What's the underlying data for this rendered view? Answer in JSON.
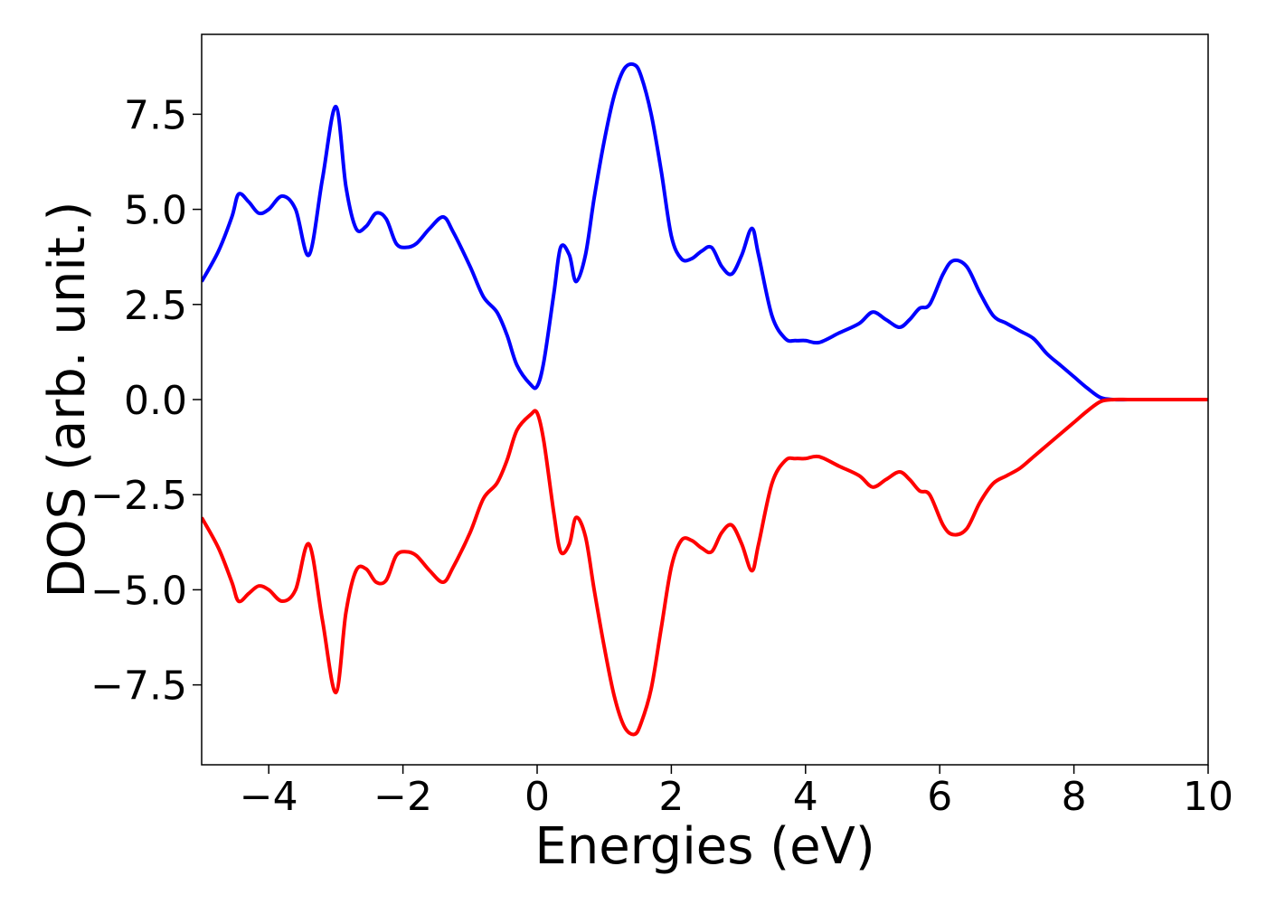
{
  "chart_data": {
    "type": "line",
    "title": "",
    "xlabel": "Energies (eV)",
    "ylabel": "DOS (arb. unit.)",
    "xlim": [
      -5,
      10
    ],
    "ylim": [
      -9.6,
      9.6
    ],
    "xticks": [
      -4,
      -2,
      0,
      2,
      4,
      6,
      8,
      10
    ],
    "xtick_labels": [
      "−4",
      "−2",
      "0",
      "2",
      "4",
      "6",
      "8",
      "10"
    ],
    "yticks": [
      -7.5,
      -5.0,
      -2.5,
      0.0,
      2.5,
      5.0,
      7.5
    ],
    "ytick_labels": [
      "−7.5",
      "−5.0",
      "−2.5",
      "0.0",
      "2.5",
      "5.0",
      "7.5"
    ],
    "grid": false,
    "series": [
      {
        "color": "#0000ff",
        "x": [
          -5.0,
          -4.75,
          -4.55,
          -4.45,
          -4.3,
          -4.15,
          -4.0,
          -3.8,
          -3.6,
          -3.4,
          -3.2,
          -3.0,
          -2.85,
          -2.7,
          -2.55,
          -2.4,
          -2.25,
          -2.1,
          -1.95,
          -1.8,
          -1.6,
          -1.4,
          -1.25,
          -1.0,
          -0.8,
          -0.6,
          -0.45,
          -0.3,
          -0.1,
          0.0,
          0.1,
          0.25,
          0.35,
          0.48,
          0.58,
          0.72,
          0.85,
          1.0,
          1.15,
          1.3,
          1.45,
          1.55,
          1.7,
          1.85,
          2.0,
          2.15,
          2.3,
          2.45,
          2.6,
          2.75,
          2.9,
          3.05,
          3.2,
          3.3,
          3.5,
          3.7,
          3.85,
          4.0,
          4.2,
          4.5,
          4.8,
          5.0,
          5.2,
          5.4,
          5.55,
          5.7,
          5.85,
          6.05,
          6.2,
          6.4,
          6.6,
          6.8,
          7.0,
          7.2,
          7.4,
          7.6,
          7.8,
          8.0,
          8.2,
          8.4,
          8.6,
          8.8,
          9.0,
          9.5,
          10.0
        ],
        "y": [
          3.1,
          3.9,
          4.8,
          5.4,
          5.2,
          4.9,
          5.0,
          5.35,
          5.0,
          3.8,
          5.8,
          7.7,
          5.6,
          4.5,
          4.55,
          4.9,
          4.75,
          4.1,
          4.0,
          4.1,
          4.5,
          4.8,
          4.4,
          3.5,
          2.7,
          2.3,
          1.7,
          0.9,
          0.4,
          0.35,
          1.0,
          2.8,
          4.0,
          3.8,
          3.1,
          3.8,
          5.3,
          6.8,
          8.0,
          8.7,
          8.8,
          8.5,
          7.5,
          6.0,
          4.3,
          3.7,
          3.7,
          3.9,
          4.0,
          3.5,
          3.3,
          3.8,
          4.5,
          3.8,
          2.2,
          1.6,
          1.55,
          1.55,
          1.5,
          1.75,
          2.0,
          2.3,
          2.1,
          1.9,
          2.1,
          2.4,
          2.5,
          3.3,
          3.65,
          3.5,
          2.8,
          2.2,
          2.0,
          1.8,
          1.6,
          1.2,
          0.9,
          0.6,
          0.3,
          0.05,
          0.0,
          0.0,
          0.0,
          0.0,
          0.0
        ]
      },
      {
        "color": "#ff0000",
        "x": [
          -5.0,
          -4.75,
          -4.55,
          -4.45,
          -4.3,
          -4.15,
          -4.0,
          -3.8,
          -3.6,
          -3.4,
          -3.2,
          -3.0,
          -2.85,
          -2.7,
          -2.55,
          -2.4,
          -2.25,
          -2.1,
          -1.95,
          -1.8,
          -1.6,
          -1.4,
          -1.25,
          -1.0,
          -0.8,
          -0.6,
          -0.45,
          -0.3,
          -0.1,
          0.0,
          0.1,
          0.25,
          0.35,
          0.48,
          0.58,
          0.72,
          0.85,
          1.0,
          1.15,
          1.3,
          1.45,
          1.55,
          1.7,
          1.85,
          2.0,
          2.15,
          2.3,
          2.45,
          2.6,
          2.75,
          2.9,
          3.05,
          3.2,
          3.3,
          3.5,
          3.7,
          3.85,
          4.0,
          4.2,
          4.5,
          4.8,
          5.0,
          5.2,
          5.4,
          5.55,
          5.7,
          5.85,
          6.05,
          6.2,
          6.4,
          6.6,
          6.8,
          7.0,
          7.2,
          7.4,
          7.6,
          7.8,
          8.0,
          8.2,
          8.4,
          8.6,
          8.8,
          9.0,
          9.5,
          10.0
        ],
        "y": [
          -3.1,
          -3.9,
          -4.8,
          -5.3,
          -5.1,
          -4.9,
          -5.0,
          -5.3,
          -5.0,
          -3.8,
          -5.8,
          -7.7,
          -5.6,
          -4.5,
          -4.45,
          -4.8,
          -4.75,
          -4.1,
          -4.0,
          -4.1,
          -4.5,
          -4.8,
          -4.4,
          -3.5,
          -2.6,
          -2.2,
          -1.6,
          -0.8,
          -0.4,
          -0.35,
          -1.1,
          -3.0,
          -4.0,
          -3.8,
          -3.1,
          -3.6,
          -5.0,
          -6.5,
          -7.8,
          -8.6,
          -8.8,
          -8.5,
          -7.6,
          -6.0,
          -4.4,
          -3.7,
          -3.7,
          -3.9,
          -4.0,
          -3.5,
          -3.3,
          -3.8,
          -4.5,
          -3.8,
          -2.2,
          -1.6,
          -1.55,
          -1.55,
          -1.5,
          -1.75,
          -2.0,
          -2.3,
          -2.1,
          -1.9,
          -2.1,
          -2.4,
          -2.5,
          -3.3,
          -3.55,
          -3.4,
          -2.7,
          -2.2,
          -2.0,
          -1.8,
          -1.5,
          -1.2,
          -0.9,
          -0.6,
          -0.3,
          -0.05,
          0.0,
          0.0,
          0.0,
          0.0,
          0.0
        ]
      }
    ]
  }
}
